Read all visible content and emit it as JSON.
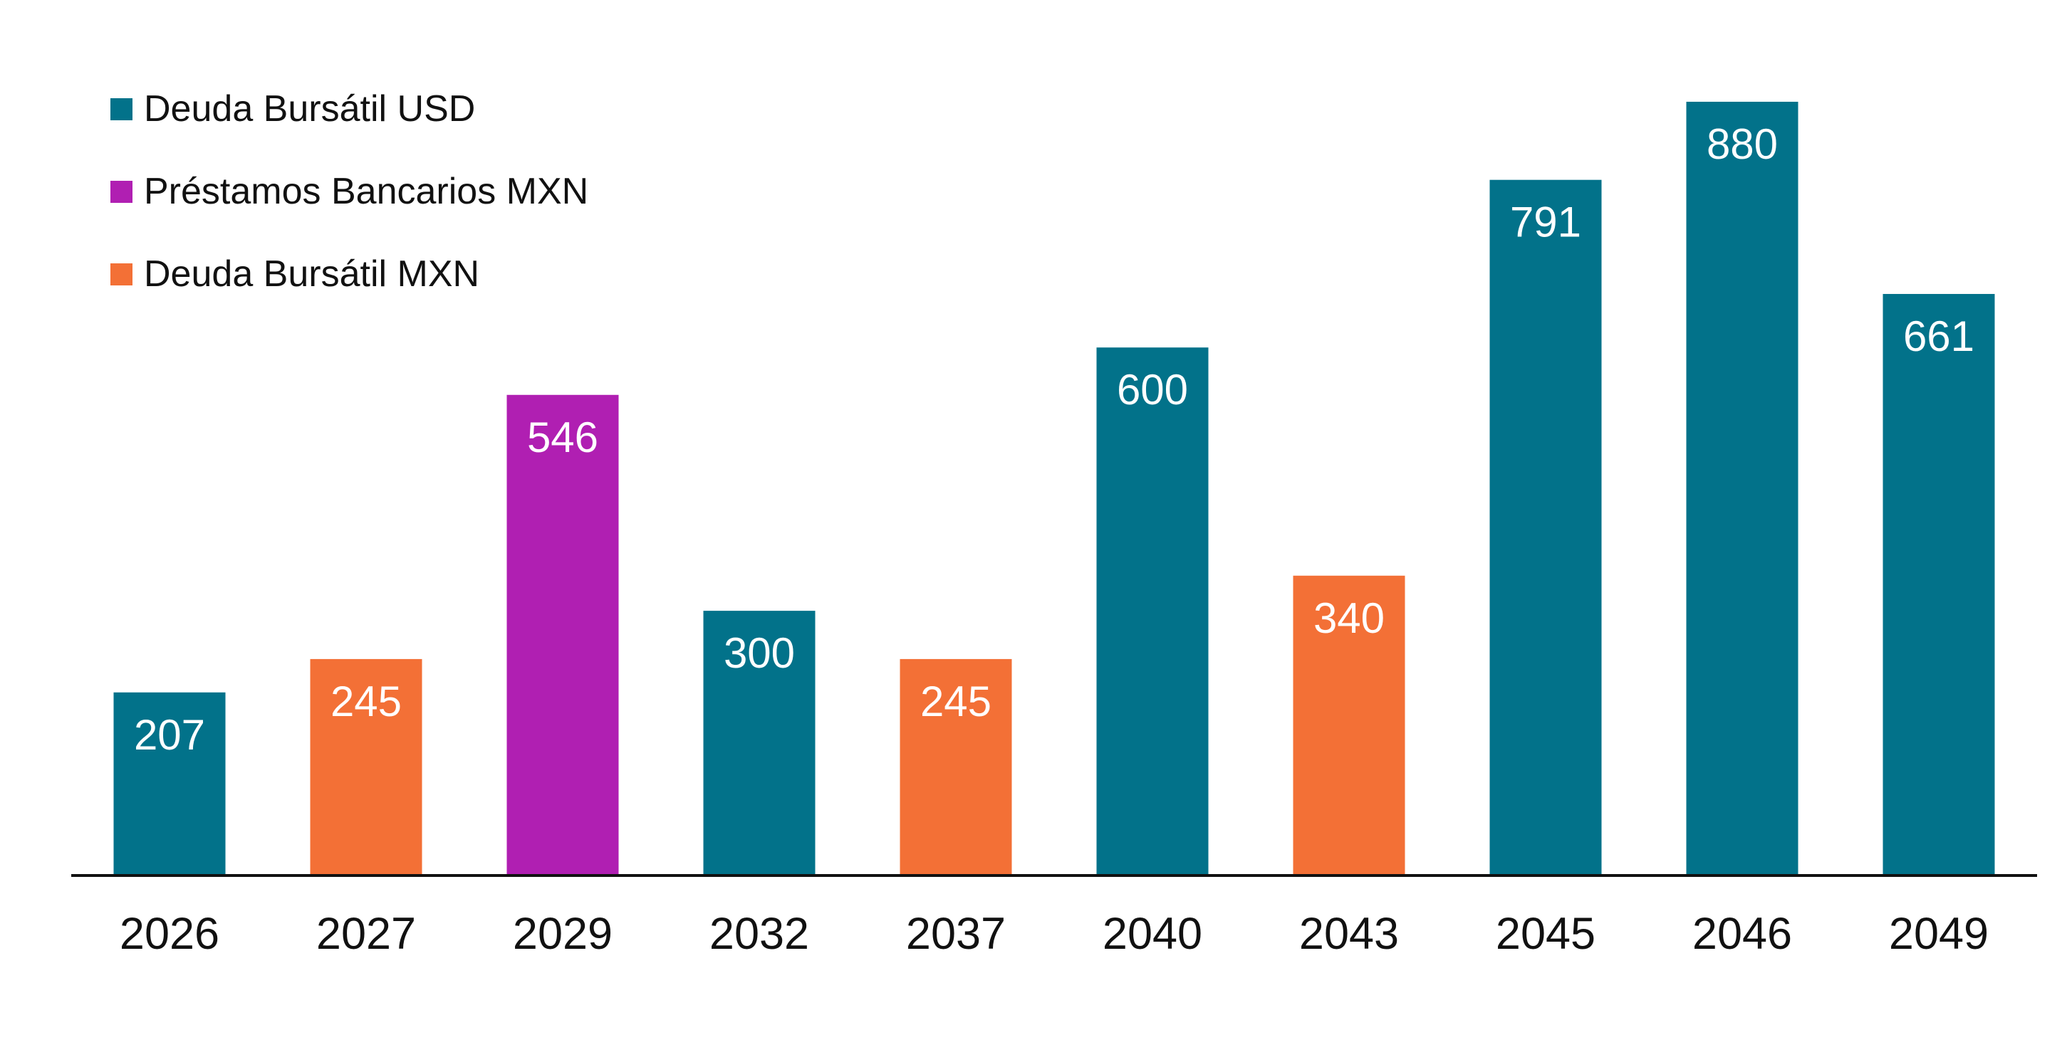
{
  "chart_data": {
    "type": "bar",
    "title": "",
    "xlabel": "",
    "ylabel": "",
    "ylim": [
      0,
      900
    ],
    "grid": false,
    "legend_position": "top-left",
    "categories": [
      "2026",
      "2027",
      "2029",
      "2032",
      "2037",
      "2040",
      "2043",
      "2045",
      "2046",
      "2049"
    ],
    "values": [
      207,
      245,
      546,
      300,
      245,
      600,
      340,
      791,
      880,
      661
    ],
    "bar_series": [
      "Deuda Bursátil USD",
      "Deuda Bursátil MXN",
      "Préstamos Bancarios MXN",
      "Deuda Bursátil USD",
      "Deuda Bursátil MXN",
      "Deuda Bursátil USD",
      "Deuda Bursátil MXN",
      "Deuda Bursátil USD",
      "Deuda Bursátil USD",
      "Deuda Bursátil USD"
    ],
    "series": [
      {
        "name": "Deuda Bursátil USD",
        "color": "#02728A"
      },
      {
        "name": "Préstamos Bancarios MXN",
        "color": "#B01FB2"
      },
      {
        "name": "Deuda Bursátil MXN",
        "color": "#F37036"
      }
    ]
  }
}
